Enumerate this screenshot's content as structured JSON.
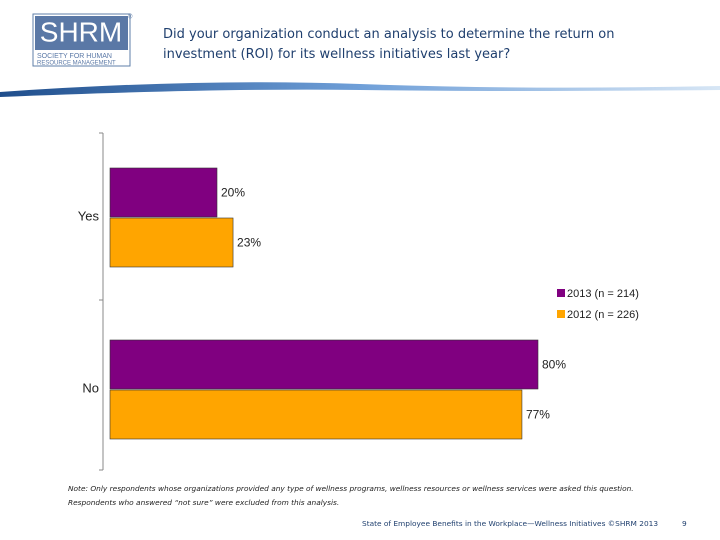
{
  "chart_data": {
    "type": "bar",
    "orientation": "horizontal",
    "categories": [
      "Yes",
      "No"
    ],
    "series": [
      {
        "name": "2013 (n = 214)",
        "color": "#800080",
        "values": [
          20,
          80
        ],
        "value_labels": [
          "20%",
          "80%"
        ]
      },
      {
        "name": "2012 (n = 226)",
        "color": "#ffa500",
        "values": [
          23,
          77
        ],
        "value_labels": [
          "23%",
          "77%"
        ]
      }
    ]
  },
  "slide": {
    "logo": {
      "mark": "SHRM",
      "line1": "SOCIETY FOR HUMAN",
      "line2": "RESOURCE MANAGEMENT",
      "registered": "®"
    },
    "title": "Did your organization conduct an analysis to determine the return on investment (ROI) for its wellness initiatives last year?",
    "note": "Note: Only respondents whose organizations provided any type of wellness programs, wellness resources or wellness services were asked this question. Respondents who answered “not sure” were excluded from this analysis.",
    "footer": "State of Employee Benefits in the Workplace—Wellness Initiatives ©SHRM 2013",
    "page": "9"
  }
}
